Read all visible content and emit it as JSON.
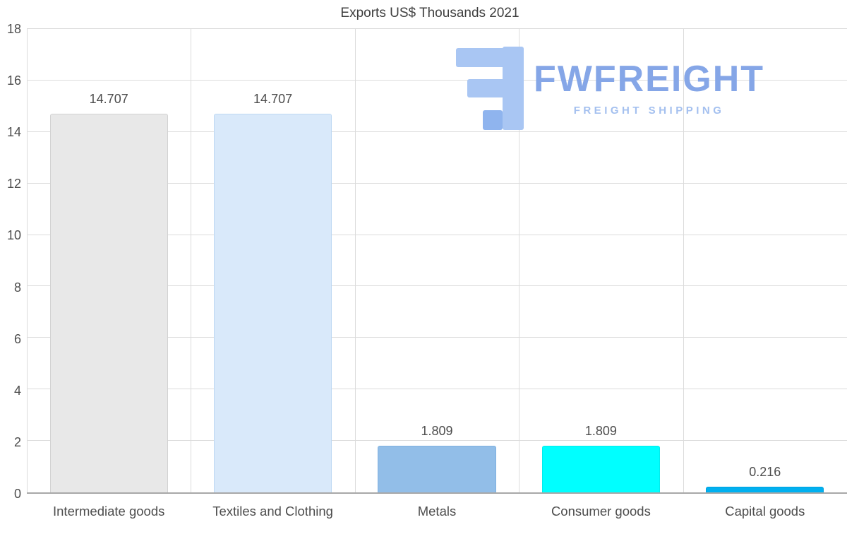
{
  "watermark": {
    "brand": "FWFREIGHT",
    "tagline": "FREIGHT SHIPPING"
  },
  "chart_data": {
    "type": "bar",
    "title": "Exports US$ Thousands 2021",
    "categories": [
      "Intermediate goods",
      "Textiles and Clothing",
      "Metals",
      "Consumer goods",
      "Capital goods"
    ],
    "values": [
      14.707,
      14.707,
      1.809,
      1.809,
      0.216
    ],
    "value_labels": [
      "14.707",
      "14.707",
      "1.809",
      "1.809",
      "0.216"
    ],
    "bar_colors": [
      "#e8e8e8",
      "#d9e9fa",
      "#92bee8",
      "#00ffff",
      "#00b0f0"
    ],
    "bar_border_colors": [
      "#d2d2d2",
      "#bfd9f3",
      "#7fb0e0",
      "#00ecec",
      "#00a0dc"
    ],
    "xlabel": "",
    "ylabel": "",
    "ylim": [
      0,
      18
    ],
    "yticks": [
      0,
      2,
      4,
      6,
      8,
      10,
      12,
      14,
      16,
      18
    ],
    "grid": true,
    "legend": false
  },
  "style": {
    "text_color": "#4d4d4d",
    "grid_color": "#dcdcdc",
    "axis_color": "#a8a8a8",
    "brand_color": "#85a6e7",
    "tagline_color": "#a4c0ef",
    "logo_color": "#a9c6f3",
    "logo_accent": "#8fb4ee"
  }
}
